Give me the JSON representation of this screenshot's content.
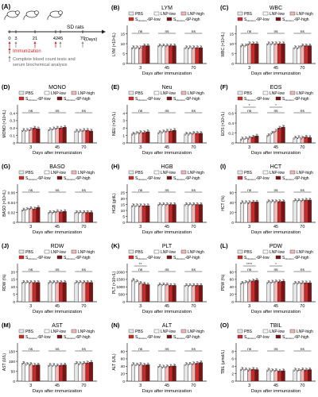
{
  "panelA": {
    "letter": "(A)",
    "subject": "SD rats",
    "ticks": [
      "0",
      "3",
      "21",
      "42",
      "45",
      "70"
    ],
    "unit": "(Days)",
    "immunization": "Immunization",
    "bloodline1": "Complete blood count tests and",
    "bloodline2": "serum biochemical analysis"
  },
  "legend": {
    "entries": [
      "PBS",
      "LNP-low",
      "LNP-high",
      "S6P-low",
      "S6P-high"
    ],
    "s6p_sub": "Omicron",
    "s6p_suffix": "-6P-low",
    "s6p_suffix_high": "-6P-high"
  },
  "colors": {
    "PBS": "#e8e8e8",
    "LNP-low": "#ffffff",
    "LNP-high": "#f2b8b8",
    "S6P-low": "#cc2a2a",
    "S6P-high": "#7a1414",
    "outline": "#333333"
  },
  "days": [
    "3",
    "45",
    "70"
  ],
  "xlabel": "Days after immunization",
  "chart_data": [
    {
      "letter": "(B)",
      "type": "bar",
      "title": "LYM",
      "ylabel": "LYM (×10⁹/L)",
      "ylim": [
        0,
        15
      ],
      "ticks": [
        0,
        5,
        10,
        15
      ],
      "series": [
        {
          "name": "PBS",
          "values": [
            8,
            9,
            8
          ]
        },
        {
          "name": "LNP-low",
          "values": [
            8,
            9,
            8
          ]
        },
        {
          "name": "LNP-high",
          "values": [
            8,
            9,
            8
          ]
        },
        {
          "name": "S6P-low",
          "values": [
            9,
            9,
            8
          ]
        },
        {
          "name": "S6P-high",
          "values": [
            9,
            9,
            8
          ]
        }
      ],
      "sig": [
        {
          "label": "ns",
          "day": 0,
          "level": 0
        },
        {
          "label": "ns",
          "day": 1,
          "level": 0
        },
        {
          "label": "ns",
          "day": 2,
          "level": 0
        }
      ]
    },
    {
      "letter": "(C)",
      "type": "bar",
      "title": "WBC",
      "ylabel": "WBC (×10⁹/L)",
      "ylim": [
        0,
        15
      ],
      "ticks": [
        0,
        5,
        10,
        15
      ],
      "series": [
        {
          "name": "PBS",
          "values": [
            9,
            10,
            8
          ]
        },
        {
          "name": "LNP-low",
          "values": [
            9,
            10,
            8
          ]
        },
        {
          "name": "LNP-high",
          "values": [
            10,
            10,
            9
          ]
        },
        {
          "name": "S6P-low",
          "values": [
            10,
            10,
            9
          ]
        },
        {
          "name": "S6P-high",
          "values": [
            10,
            10,
            9
          ]
        }
      ],
      "sig": [
        {
          "label": "ns",
          "day": 0,
          "level": 0
        },
        {
          "label": "ns",
          "day": 1,
          "level": 0
        },
        {
          "label": "ns",
          "day": 2,
          "level": 0
        }
      ]
    },
    {
      "letter": "(D)",
      "type": "bar",
      "title": "MONO",
      "ylabel": "MONO (×10⁹/L)",
      "ylim": [
        0,
        0.4
      ],
      "ticks": [
        0,
        0.1,
        0.2,
        0.3,
        0.4
      ],
      "series": [
        {
          "name": "PBS",
          "values": [
            0.17,
            0.18,
            0.16
          ]
        },
        {
          "name": "LNP-low",
          "values": [
            0.17,
            0.19,
            0.16
          ]
        },
        {
          "name": "LNP-high",
          "values": [
            0.18,
            0.2,
            0.17
          ]
        },
        {
          "name": "S6P-low",
          "values": [
            0.2,
            0.2,
            0.17
          ]
        },
        {
          "name": "S6P-high",
          "values": [
            0.19,
            0.21,
            0.16
          ]
        }
      ],
      "sig": [
        {
          "label": "ns",
          "day": 0,
          "level": 0
        },
        {
          "label": "ns",
          "day": 1,
          "level": 0
        },
        {
          "label": "ns",
          "day": 2,
          "level": 0
        }
      ]
    },
    {
      "letter": "(E)",
      "type": "bar",
      "title": "Neu",
      "ylabel": "NEU (×10⁹/L)",
      "ylim": [
        0,
        4
      ],
      "ticks": [
        0,
        1,
        2,
        3,
        4
      ],
      "series": [
        {
          "name": "PBS",
          "values": [
            1.2,
            1.4,
            1.2
          ]
        },
        {
          "name": "LNP-low",
          "values": [
            1.3,
            1.5,
            1.2
          ]
        },
        {
          "name": "LNP-high",
          "values": [
            1.4,
            1.6,
            1.3
          ]
        },
        {
          "name": "S6P-low",
          "values": [
            1.4,
            1.6,
            1.3
          ]
        },
        {
          "name": "S6P-high",
          "values": [
            1.5,
            1.7,
            1.3
          ]
        }
      ],
      "sig": [
        {
          "label": "ns",
          "day": 0,
          "level": 0
        },
        {
          "label": "ns",
          "day": 1,
          "level": 0
        },
        {
          "label": "ns",
          "day": 2,
          "level": 0
        }
      ]
    },
    {
      "letter": "(F)",
      "type": "bar",
      "title": "EOS",
      "ylabel": "EOS (×10⁹/L)",
      "ylim": [
        0,
        0.6
      ],
      "ticks": [
        0,
        0.2,
        0.4,
        0.6
      ],
      "series": [
        {
          "name": "PBS",
          "values": [
            0.08,
            0.15,
            0.1
          ]
        },
        {
          "name": "LNP-low",
          "values": [
            0.09,
            0.2,
            0.11
          ]
        },
        {
          "name": "LNP-high",
          "values": [
            0.1,
            0.24,
            0.1
          ]
        },
        {
          "name": "S6P-low",
          "values": [
            0.12,
            0.3,
            0.12
          ]
        },
        {
          "name": "S6P-high",
          "values": [
            0.14,
            0.32,
            0.11
          ]
        }
      ],
      "sig": [
        {
          "label": "ns",
          "day": 0,
          "level": 0
        },
        {
          "label": "*",
          "day": 0,
          "level": 1
        },
        {
          "label": "ns",
          "day": 1,
          "level": 0
        },
        {
          "label": "*",
          "day": 1,
          "level": 1
        },
        {
          "label": "ns",
          "day": 2,
          "level": 0
        }
      ]
    },
    {
      "letter": "(G)",
      "type": "bar",
      "title": "BASO",
      "ylabel": "BASO (×10⁹/L)",
      "ylim": [
        0,
        0.06
      ],
      "ticks": [
        0,
        0.02,
        0.04,
        0.06
      ],
      "series": [
        {
          "name": "PBS",
          "values": [
            0.025,
            0.02,
            0.02
          ]
        },
        {
          "name": "LNP-low",
          "values": [
            0.026,
            0.02,
            0.02
          ]
        },
        {
          "name": "LNP-high",
          "values": [
            0.028,
            0.022,
            0.02
          ]
        },
        {
          "name": "S6P-low",
          "values": [
            0.027,
            0.021,
            0.02
          ]
        },
        {
          "name": "S6P-high",
          "values": [
            0.03,
            0.022,
            0.02
          ]
        }
      ],
      "sig": [
        {
          "label": "ns",
          "day": 0,
          "level": 0
        },
        {
          "label": "ns",
          "day": 1,
          "level": 0
        },
        {
          "label": "ns",
          "day": 2,
          "level": 0
        }
      ]
    },
    {
      "letter": "(H)",
      "type": "bar",
      "title": "HGB",
      "ylabel": "HGB (g/dL)",
      "ylim": [
        0,
        25
      ],
      "ticks": [
        0,
        5,
        10,
        15,
        20,
        25
      ],
      "series": [
        {
          "name": "PBS",
          "values": [
            14,
            15,
            15
          ]
        },
        {
          "name": "LNP-low",
          "values": [
            14,
            15,
            15
          ]
        },
        {
          "name": "LNP-high",
          "values": [
            14,
            15,
            15
          ]
        },
        {
          "name": "S6P-low",
          "values": [
            14,
            15,
            15
          ]
        },
        {
          "name": "S6P-high",
          "values": [
            14,
            15,
            15
          ]
        }
      ],
      "sig": [
        {
          "label": "ns",
          "day": 0,
          "level": 0
        },
        {
          "label": "ns",
          "day": 1,
          "level": 0
        },
        {
          "label": "ns",
          "day": 2,
          "level": 0
        }
      ]
    },
    {
      "letter": "(I)",
      "type": "bar",
      "title": "HCT",
      "ylabel": "HCT (%)",
      "ylim": [
        0,
        60
      ],
      "ticks": [
        0,
        20,
        40,
        60
      ],
      "series": [
        {
          "name": "PBS",
          "values": [
            40,
            42,
            44
          ]
        },
        {
          "name": "LNP-low",
          "values": [
            40,
            42,
            44
          ]
        },
        {
          "name": "LNP-high",
          "values": [
            40,
            42,
            44
          ]
        },
        {
          "name": "S6P-low",
          "values": [
            41,
            42,
            45
          ]
        },
        {
          "name": "S6P-high",
          "values": [
            41,
            42,
            45
          ]
        }
      ],
      "sig": [
        {
          "label": "ns",
          "day": 0,
          "level": 0
        },
        {
          "label": "ns",
          "day": 1,
          "level": 0
        },
        {
          "label": "ns",
          "day": 2,
          "level": 0
        }
      ]
    },
    {
      "letter": "(J)",
      "type": "bar",
      "title": "RDW",
      "ylabel": "RDW (%)",
      "ylim": [
        0,
        20
      ],
      "ticks": [
        0,
        5,
        10,
        15,
        20
      ],
      "series": [
        {
          "name": "PBS",
          "values": [
            13,
            13,
            13
          ]
        },
        {
          "name": "LNP-low",
          "values": [
            13,
            13,
            13
          ]
        },
        {
          "name": "LNP-high",
          "values": [
            13,
            13,
            13
          ]
        },
        {
          "name": "S6P-low",
          "values": [
            13,
            13,
            13
          ]
        },
        {
          "name": "S6P-high",
          "values": [
            13,
            13,
            13
          ]
        }
      ],
      "sig": [
        {
          "label": "ns",
          "day": 0,
          "level": 0
        },
        {
          "label": "ns",
          "day": 1,
          "level": 0
        },
        {
          "label": "ns",
          "day": 2,
          "level": 0
        }
      ]
    },
    {
      "letter": "(K)",
      "type": "bar",
      "title": "PLT",
      "ylabel": "PLT (×10⁹/L)",
      "ylim": [
        0,
        2000
      ],
      "ticks": [
        0,
        500,
        1000,
        1500,
        2000
      ],
      "series": [
        {
          "name": "PBS",
          "values": [
            1450,
            1150,
            1100
          ]
        },
        {
          "name": "LNP-low",
          "values": [
            1350,
            1150,
            1100
          ]
        },
        {
          "name": "LNP-high",
          "values": [
            1250,
            1150,
            1100
          ]
        },
        {
          "name": "S6P-low",
          "values": [
            1200,
            1100,
            1100
          ]
        },
        {
          "name": "S6P-high",
          "values": [
            1150,
            1100,
            1100
          ]
        }
      ],
      "sig": [
        {
          "label": "ns",
          "day": 0,
          "level": 0
        },
        {
          "label": "**",
          "day": 0,
          "level": 1
        },
        {
          "label": "ns",
          "day": 1,
          "level": 0
        },
        {
          "label": "ns",
          "day": 2,
          "level": 0
        }
      ]
    },
    {
      "letter": "(L)",
      "type": "bar",
      "title": "PDW",
      "ylabel": "PDW (%)",
      "ylim": [
        0,
        80
      ],
      "ticks": [
        0,
        20,
        40,
        60,
        80
      ],
      "series": [
        {
          "name": "PBS",
          "values": [
            50,
            52,
            50
          ]
        },
        {
          "name": "LNP-low",
          "values": [
            52,
            53,
            50
          ]
        },
        {
          "name": "LNP-high",
          "values": [
            54,
            54,
            51
          ]
        },
        {
          "name": "S6P-low",
          "values": [
            56,
            54,
            51
          ]
        },
        {
          "name": "S6P-high",
          "values": [
            58,
            55,
            51
          ]
        }
      ],
      "sig": [
        {
          "label": "ns",
          "day": 0,
          "level": 0
        },
        {
          "label": "****",
          "day": 0,
          "level": 1
        },
        {
          "label": "ns",
          "day": 1,
          "level": 0
        },
        {
          "label": "*",
          "day": 1,
          "level": 1
        },
        {
          "label": "ns",
          "day": 2,
          "level": 0
        }
      ]
    },
    {
      "letter": "(M)",
      "type": "bar",
      "title": "AST",
      "ylabel": "AST (U/L)",
      "ylim": [
        0,
        150
      ],
      "ticks": [
        0,
        50,
        100,
        150
      ],
      "series": [
        {
          "name": "PBS",
          "values": [
            90,
            80,
            90
          ]
        },
        {
          "name": "LNP-low",
          "values": [
            85,
            80,
            88
          ]
        },
        {
          "name": "LNP-high",
          "values": [
            85,
            78,
            90
          ]
        },
        {
          "name": "S6P-low",
          "values": [
            80,
            80,
            92
          ]
        },
        {
          "name": "S6P-high",
          "values": [
            82,
            82,
            95
          ]
        }
      ],
      "sig": [
        {
          "label": "ns",
          "day": 0,
          "level": 0
        },
        {
          "label": "ns",
          "day": 1,
          "level": 0
        },
        {
          "label": "ns",
          "day": 2,
          "level": 0
        }
      ]
    },
    {
      "letter": "(N)",
      "type": "bar",
      "title": "ALT",
      "ylabel": "ALT (U/L)",
      "ylim": [
        0,
        80
      ],
      "ticks": [
        0,
        20,
        40,
        60,
        80
      ],
      "series": [
        {
          "name": "PBS",
          "values": [
            45,
            40,
            45
          ]
        },
        {
          "name": "LNP-low",
          "values": [
            44,
            38,
            46
          ]
        },
        {
          "name": "LNP-high",
          "values": [
            45,
            39,
            47
          ]
        },
        {
          "name": "S6P-low",
          "values": [
            43,
            40,
            48
          ]
        },
        {
          "name": "S6P-high",
          "values": [
            44,
            41,
            50
          ]
        }
      ],
      "sig": [
        {
          "label": "ns",
          "day": 0,
          "level": 0
        },
        {
          "label": "ns",
          "day": 1,
          "level": 0
        },
        {
          "label": "ns",
          "day": 2,
          "level": 0
        }
      ]
    },
    {
      "letter": "(O)",
      "type": "bar",
      "title": "TBIL",
      "ylabel": "TBIL (μmol/L)",
      "ylim": [
        0,
        8
      ],
      "ticks": [
        0,
        2,
        4,
        6,
        8
      ],
      "series": [
        {
          "name": "PBS",
          "values": [
            3.2,
            3.0,
            3.0
          ]
        },
        {
          "name": "LNP-low",
          "values": [
            3.1,
            2.8,
            2.9
          ]
        },
        {
          "name": "LNP-high",
          "values": [
            3.0,
            2.9,
            3.1
          ]
        },
        {
          "name": "S6P-low",
          "values": [
            3.2,
            2.7,
            3.0
          ]
        },
        {
          "name": "S6P-high",
          "values": [
            3.1,
            2.8,
            3.1
          ]
        }
      ],
      "sig": [
        {
          "label": "ns",
          "day": 0,
          "level": 0
        },
        {
          "label": "ns",
          "day": 1,
          "level": 0
        },
        {
          "label": "ns",
          "day": 2,
          "level": 0
        }
      ]
    }
  ]
}
